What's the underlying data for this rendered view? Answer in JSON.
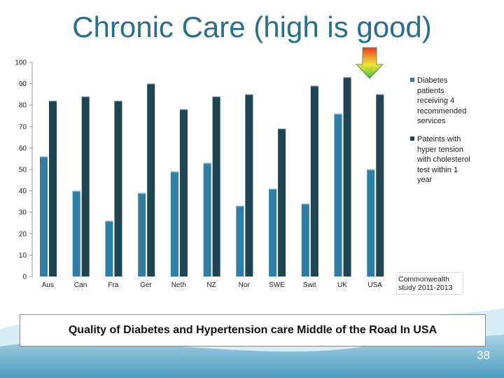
{
  "slide": {
    "title": "Chronic Care (high is good)",
    "caption": "Quality of Diabetes and Hypertension care Middle of the Road In USA",
    "source": "Commonwealth study 2011-2013",
    "page_number": "38"
  },
  "colors": {
    "title": "#2b6f8c",
    "series1": "#2e7ea6",
    "series2": "#1f4452",
    "bottom_band": "#5aa7c9"
  },
  "arrow_icon": "gradient-down-arrow-icon",
  "chart_data": {
    "type": "bar",
    "categories": [
      "Aus",
      "Can",
      "Fra",
      "Ger",
      "Neth",
      "NZ",
      "Nor",
      "SWE",
      "Swit",
      "UK",
      "USA"
    ],
    "series": [
      {
        "name": "Diabetes patients receiving 4 recommended services",
        "values": [
          56,
          40,
          26,
          39,
          49,
          53,
          33,
          41,
          34,
          76,
          50
        ],
        "color": "#2e7ea6"
      },
      {
        "name": "Pateints with hyper tension with cholesterol test within 1 year",
        "values": [
          82,
          84,
          82,
          90,
          78,
          84,
          85,
          69,
          89,
          93,
          85
        ],
        "color": "#1f4452"
      }
    ],
    "ylim": [
      0,
      100
    ],
    "yticks": [
      0,
      10,
      20,
      30,
      40,
      50,
      60,
      70,
      80,
      90,
      100
    ],
    "grid": false,
    "legend": "right"
  }
}
